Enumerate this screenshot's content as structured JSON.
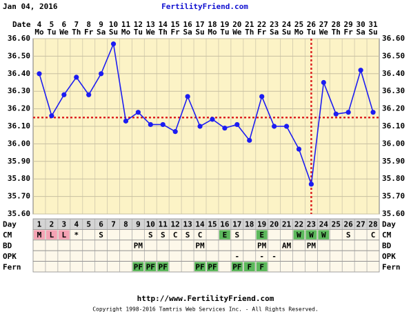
{
  "chart_data": {
    "type": "line",
    "date": "Jan 04, 2016",
    "title": "FertilityFriend.com",
    "date_label": "Date",
    "categories": [
      "4",
      "5",
      "6",
      "7",
      "8",
      "9",
      "10",
      "11",
      "12",
      "13",
      "14",
      "15",
      "16",
      "17",
      "18",
      "19",
      "20",
      "21",
      "22",
      "23",
      "24",
      "25",
      "26",
      "27",
      "28",
      "29",
      "30",
      "31"
    ],
    "weekdays": [
      "Mo",
      "Tu",
      "We",
      "Th",
      "Fr",
      "Sa",
      "Su",
      "Mo",
      "Tu",
      "We",
      "Th",
      "Fr",
      "Sa",
      "Su",
      "Mo",
      "Tu",
      "We",
      "Th",
      "Fr",
      "Sa",
      "Su",
      "Mo",
      "Tu",
      "We",
      "Th",
      "Fr",
      "Sa",
      "Su"
    ],
    "values": [
      36.4,
      36.16,
      36.28,
      36.38,
      36.28,
      36.4,
      36.57,
      36.13,
      36.18,
      36.11,
      36.11,
      36.07,
      36.27,
      36.1,
      36.14,
      36.09,
      36.11,
      36.02,
      36.27,
      36.1,
      36.1,
      35.97,
      35.77,
      36.35,
      36.17,
      36.18,
      36.42,
      36.18
    ],
    "color": "#1c1cf2",
    "ylim": [
      35.6,
      36.6
    ],
    "yticks": [
      {
        "value": 35.6,
        "label": "35.60"
      },
      {
        "value": 35.7,
        "label": "35.70"
      },
      {
        "value": 35.8,
        "label": "35.80"
      },
      {
        "value": 35.9,
        "label": "35.90"
      },
      {
        "value": 36.0,
        "label": "36.00"
      },
      {
        "value": 36.1,
        "label": "36.10"
      },
      {
        "value": 36.2,
        "label": "36.20"
      },
      {
        "value": 36.3,
        "label": "36.30"
      },
      {
        "value": 36.4,
        "label": "36.40"
      },
      {
        "value": 36.5,
        "label": "36.50"
      },
      {
        "value": 36.6,
        "label": "36.60"
      }
    ],
    "grid": true,
    "coverline": 36.15,
    "coverline_color": "#dd2222",
    "ovulation_day": 23,
    "day_label": "Day",
    "days": [
      1,
      2,
      3,
      4,
      5,
      6,
      7,
      8,
      9,
      10,
      11,
      12,
      13,
      14,
      15,
      16,
      17,
      18,
      19,
      20,
      21,
      22,
      23,
      24,
      25,
      26,
      27,
      28
    ],
    "rows": [
      {
        "label": "CM",
        "cells": [
          "M",
          "L",
          "L",
          "*",
          null,
          "S",
          null,
          null,
          null,
          "S",
          "S",
          "C",
          "S",
          "C",
          null,
          "E",
          "S",
          null,
          "E",
          null,
          null,
          "W",
          "W",
          "W",
          null,
          "S",
          null,
          "C"
        ],
        "cell_colors": [
          "#f4a3b4",
          "#f4a3b4",
          "#f4a3b4",
          null,
          null,
          null,
          null,
          null,
          null,
          null,
          null,
          null,
          null,
          null,
          null,
          "#5cb85c",
          null,
          null,
          "#5cb85c",
          null,
          null,
          "#5cb85c",
          "#5cb85c",
          "#5cb85c",
          null,
          null,
          null,
          null
        ]
      },
      {
        "label": "BD",
        "cells": [
          null,
          null,
          null,
          null,
          null,
          null,
          null,
          null,
          "PM",
          null,
          null,
          null,
          null,
          "PM",
          null,
          null,
          null,
          null,
          "PM",
          null,
          "AM",
          null,
          "PM",
          null,
          null,
          null,
          null,
          null
        ]
      },
      {
        "label": "OPK",
        "cells": [
          null,
          null,
          null,
          null,
          null,
          null,
          null,
          null,
          null,
          null,
          null,
          null,
          null,
          null,
          null,
          null,
          "-",
          null,
          "-",
          "-",
          null,
          null,
          null,
          null,
          null,
          null,
          null,
          null
        ]
      },
      {
        "label": "Fern",
        "cells": [
          null,
          null,
          null,
          null,
          null,
          null,
          null,
          null,
          "PF",
          "PF",
          "PF",
          null,
          null,
          "PF",
          "PF",
          null,
          "PF",
          "F",
          "F",
          null,
          null,
          null,
          null,
          null,
          null,
          null,
          null,
          null
        ],
        "cell_colors": [
          null,
          null,
          null,
          null,
          null,
          null,
          null,
          null,
          "#5cb85c",
          "#5cb85c",
          "#5cb85c",
          null,
          null,
          "#5cb85c",
          "#5cb85c",
          null,
          "#5cb85c",
          "#5cb85c",
          "#5cb85c",
          null,
          null,
          null,
          null,
          null,
          null,
          null,
          null,
          null
        ]
      }
    ],
    "footer_url": "http://www.FertilityFriend.com",
    "copyright": "Copyright 1998-2016 Tamtris Web Services Inc. - All Rights Reserved."
  }
}
